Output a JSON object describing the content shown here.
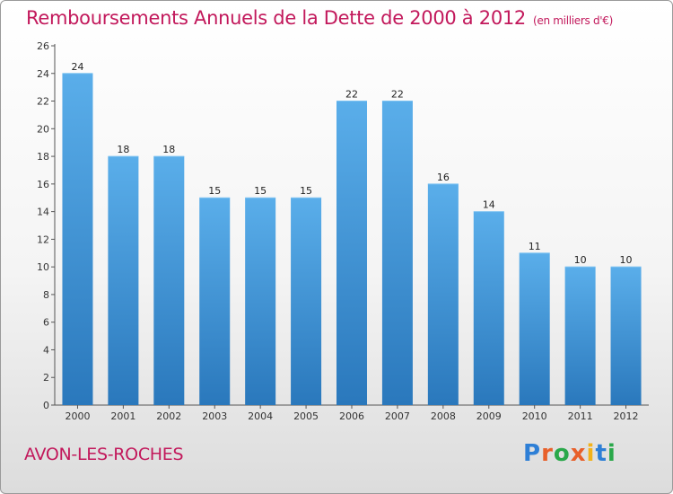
{
  "header": {
    "title": "Remboursements Annuels de la Dette de 2000 à 2012",
    "subtitle": "(en milliers d'€)"
  },
  "footer": {
    "commune": "AVON-LES-ROCHES",
    "logo_text": "Proxiti"
  },
  "colors": {
    "title": "#c2185b",
    "bar_light": "#5aaeea",
    "bar_dark": "#2a78bc"
  },
  "chart_data": {
    "type": "bar",
    "title": "Remboursements Annuels de la Dette de 2000 à 2012",
    "subtitle": "(en milliers d'€)",
    "categories": [
      "2000",
      "2001",
      "2002",
      "2003",
      "2004",
      "2005",
      "2006",
      "2007",
      "2008",
      "2009",
      "2010",
      "2011",
      "2012"
    ],
    "values": [
      24,
      18,
      18,
      15,
      15,
      15,
      22,
      22,
      16,
      14,
      11,
      10,
      10
    ],
    "ylim": [
      0,
      26
    ],
    "yticks": [
      0,
      2,
      4,
      6,
      8,
      10,
      12,
      14,
      16,
      18,
      20,
      22,
      24,
      26
    ],
    "grid": false,
    "legend": "none"
  }
}
